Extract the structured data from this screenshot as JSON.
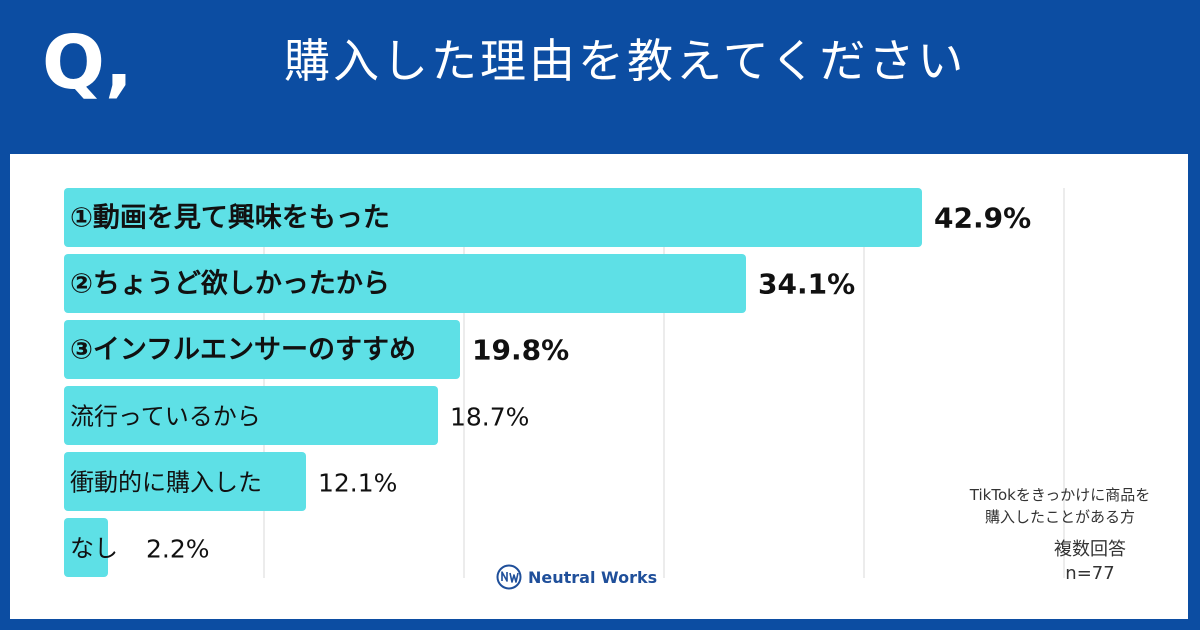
{
  "header": {
    "q_mark": "Q,",
    "title": "購入した理由を教えてください"
  },
  "colors": {
    "header_bg": "#0c4da2",
    "bar": "#5ee0e6",
    "panel": "#ffffff",
    "grid": "#d9d9d9",
    "text": "#111111"
  },
  "chart_data": {
    "type": "bar",
    "orientation": "horizontal",
    "title": "購入した理由を教えてください",
    "categories": [
      "①動画を見て興味をもった",
      "②ちょうど欲しかったから",
      "③インフルエンサーのすすめ",
      "流行っているから",
      "衝動的に購入した",
      "なし"
    ],
    "values": [
      42.9,
      34.1,
      19.8,
      18.7,
      12.1,
      2.2
    ],
    "value_labels": [
      "42.9%",
      "34.1%",
      "19.8%",
      "18.7%",
      "12.1%",
      "2.2%"
    ],
    "highlighted": [
      true,
      true,
      true,
      false,
      false,
      false
    ],
    "xlim": [
      0,
      50
    ],
    "grid": true,
    "gridlines_at": [
      10,
      20,
      30,
      40,
      50
    ]
  },
  "notes": {
    "line1": "TikTokをきっかけに商品を",
    "line2": "購入したことがある方",
    "multi": "複数回答",
    "n": "n=77"
  },
  "logo": {
    "text": "Neutral Works"
  }
}
